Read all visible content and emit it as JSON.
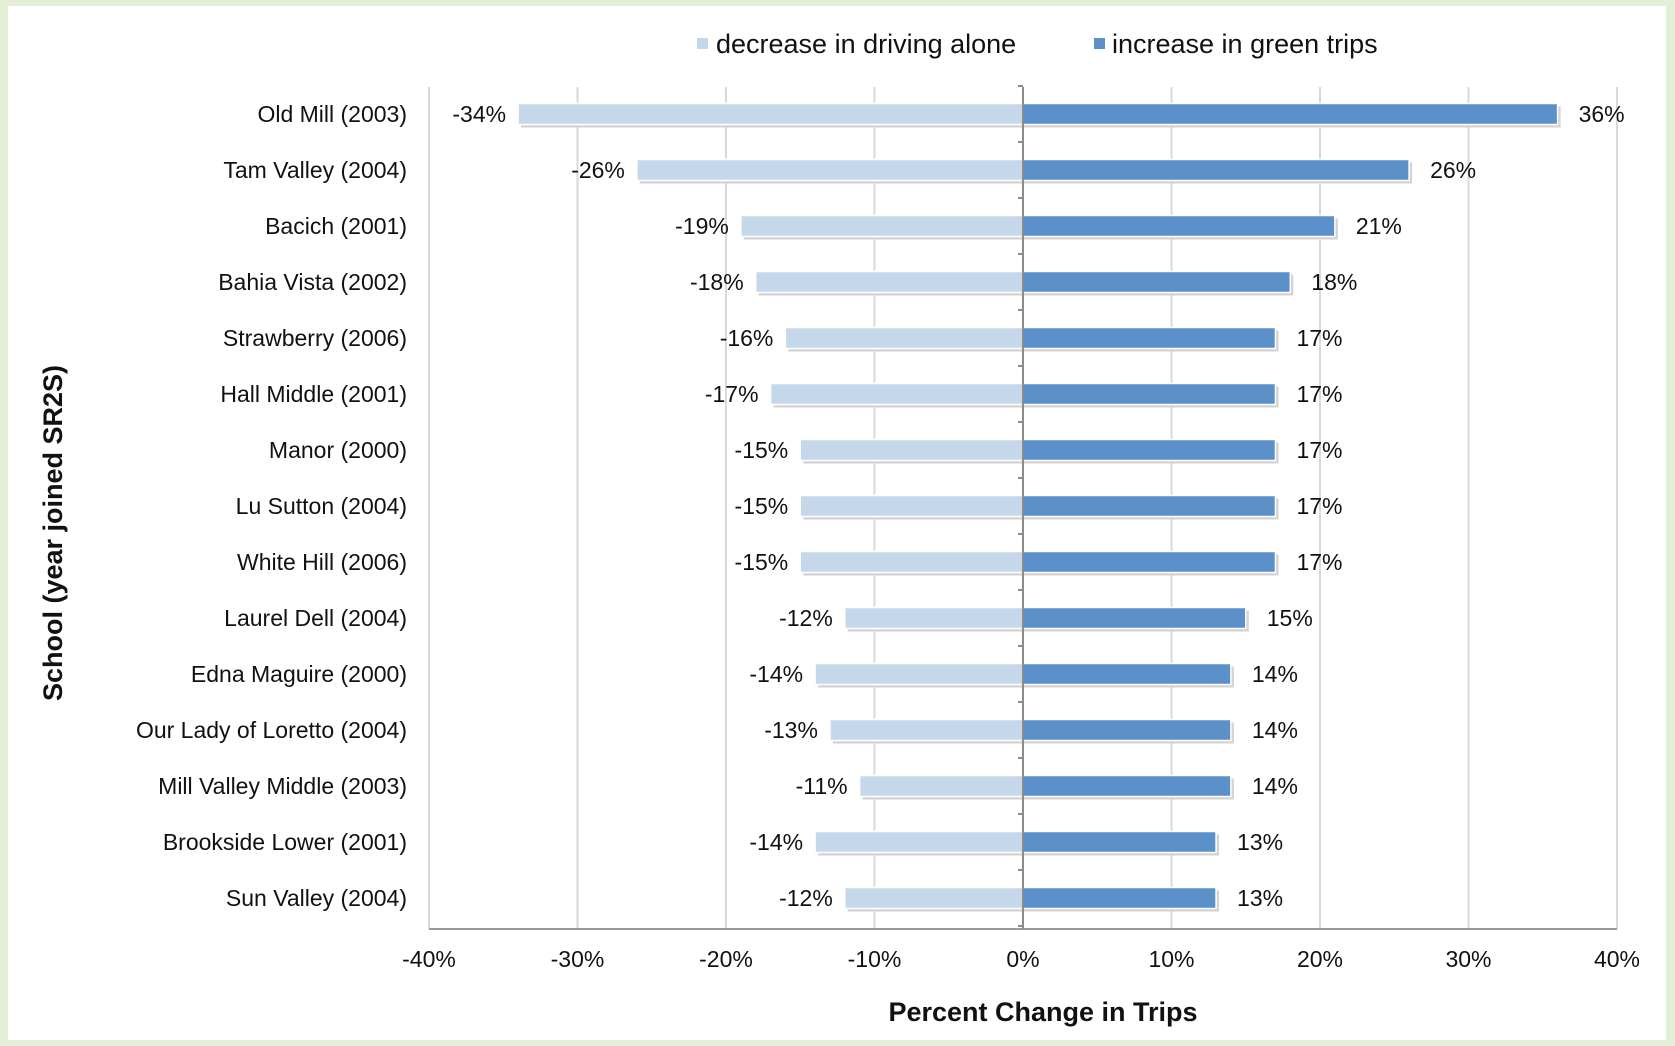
{
  "chart_data": {
    "type": "bar",
    "orientation": "horizontal",
    "title": "",
    "xlabel": "Percent Change in Trips",
    "ylabel": "School (year joined SR2S)",
    "xlim": [
      -40,
      40
    ],
    "x_ticks": [
      -40,
      -30,
      -20,
      -10,
      0,
      10,
      20,
      30,
      40
    ],
    "x_tick_labels": [
      "-40%",
      "-30%",
      "-20%",
      "-10%",
      "0%",
      "10%",
      "20%",
      "30%",
      "40%"
    ],
    "grid": "vertical major gridlines",
    "legend_position": "top",
    "categories": [
      "Old Mill (2003)",
      "Tam Valley (2004)",
      "Bacich (2001)",
      "Bahia Vista (2002)",
      "Strawberry (2006)",
      "Hall Middle (2001)",
      "Manor (2000)",
      "Lu Sutton (2004)",
      "White Hill (2006)",
      "Laurel Dell (2004)",
      "Edna Maguire (2000)",
      "Our Lady of Loretto (2004)",
      "Mill Valley Middle (2003)",
      "Brookside Lower (2001)",
      "Sun Valley (2004)"
    ],
    "series": [
      {
        "name": "decrease in driving alone",
        "color": "#c5d7eb",
        "values": [
          -34,
          -26,
          -19,
          -18,
          -16,
          -17,
          -15,
          -15,
          -15,
          -12,
          -14,
          -13,
          -11,
          -14,
          -12
        ],
        "labels": [
          "-34%",
          "-26%",
          "-19%",
          "-18%",
          "-16%",
          "-17%",
          "-15%",
          "-15%",
          "-15%",
          "-12%",
          "-14%",
          "-13%",
          "-11%",
          "-14%",
          "-12%"
        ]
      },
      {
        "name": "increase in green trips",
        "color": "#5b90c8",
        "values": [
          36,
          26,
          21,
          18,
          17,
          17,
          17,
          17,
          17,
          15,
          14,
          14,
          14,
          13,
          13
        ],
        "labels": [
          "36%",
          "26%",
          "21%",
          "18%",
          "17%",
          "17%",
          "17%",
          "17%",
          "17%",
          "15%",
          "14%",
          "14%",
          "14%",
          "13%",
          "13%"
        ]
      }
    ]
  }
}
